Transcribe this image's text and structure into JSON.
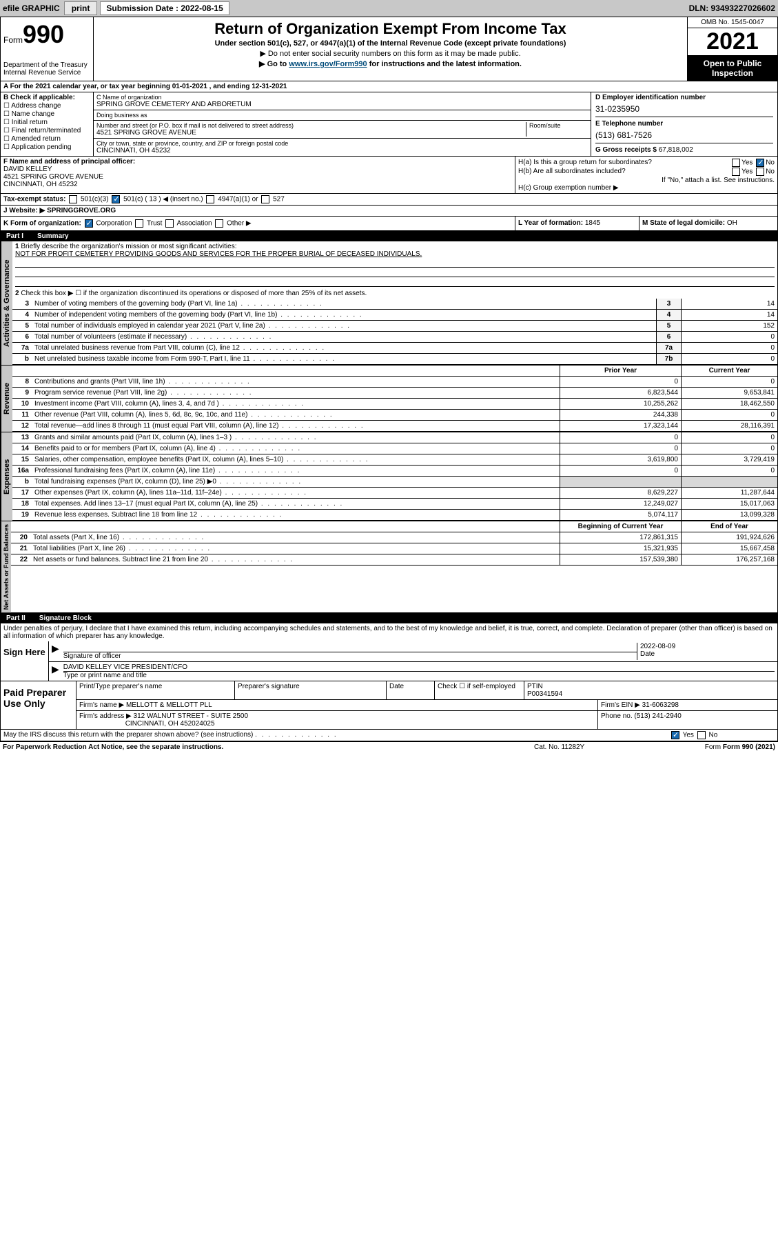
{
  "topbar": {
    "efile": "efile GRAPHIC",
    "print": "print",
    "sub_label": "Submission Date : 2022-08-15",
    "dln": "DLN: 93493227026602"
  },
  "header": {
    "form_label": "Form",
    "form_num": "990",
    "dept": "Department of the Treasury\nInternal Revenue Service",
    "title": "Return of Organization Exempt From Income Tax",
    "sub1": "Under section 501(c), 527, or 4947(a)(1) of the Internal Revenue Code (except private foundations)",
    "sub2": "▶ Do not enter social security numbers on this form as it may be made public.",
    "sub3_pre": "▶ Go to ",
    "sub3_link": "www.irs.gov/Form990",
    "sub3_post": " for instructions and the latest information.",
    "omb": "OMB No. 1545-0047",
    "year": "2021",
    "open_public": "Open to Public Inspection"
  },
  "row_a": "A For the 2021 calendar year, or tax year beginning 01-01-2021  , and ending 12-31-2021",
  "box_b": {
    "label": "B Check if applicable:",
    "items": [
      "Address change",
      "Name change",
      "Initial return",
      "Final return/terminated",
      "Amended return",
      "Application pending"
    ]
  },
  "box_c": {
    "name_label": "C Name of organization",
    "name": "SPRING GROVE CEMETERY AND ARBORETUM",
    "dba_label": "Doing business as",
    "dba": "",
    "addr_label": "Number and street (or P.O. box if mail is not delivered to street address)",
    "room_label": "Room/suite",
    "addr": "4521 SPRING GROVE AVENUE",
    "city_label": "City or town, state or province, country, and ZIP or foreign postal code",
    "city": "CINCINNATI, OH  45232"
  },
  "box_d": {
    "ein_label": "D Employer identification number",
    "ein": "31-0235950",
    "phone_label": "E Telephone number",
    "phone": "(513) 681-7526",
    "gross_label": "G Gross receipts $",
    "gross": "67,818,002"
  },
  "box_f": {
    "label": "F Name and address of principal officer:",
    "name": "DAVID KELLEY",
    "addr1": "4521 SPRING GROVE AVENUE",
    "addr2": "CINCINNATI, OH  45232"
  },
  "box_h": {
    "ha": "H(a)  Is this a group return for subordinates?",
    "hb": "H(b)  Are all subordinates included?",
    "hb_note": "If \"No,\" attach a list. See instructions.",
    "hc": "H(c)  Group exemption number ▶",
    "yes": "Yes",
    "no": "No"
  },
  "row_i": {
    "label": "Tax-exempt status:",
    "opts": [
      "501(c)(3)",
      "501(c) ( 13 ) ◀ (insert no.)",
      "4947(a)(1) or",
      "527"
    ]
  },
  "row_j": {
    "label": "J   Website: ▶",
    "val": "SPRINGGROVE.ORG"
  },
  "row_k": {
    "label": "K Form of organization:",
    "opts": [
      "Corporation",
      "Trust",
      "Association",
      "Other ▶"
    ],
    "l_label": "L Year of formation:",
    "l_val": "1845",
    "m_label": "M State of legal domicile:",
    "m_val": "OH"
  },
  "part1": {
    "hdr_num": "Part I",
    "hdr_title": "Summary",
    "q1": "Briefly describe the organization's mission or most significant activities:",
    "mission": "NOT FOR PROFIT CEMETERY PROVIDING GOODS AND SERVICES FOR THE PROPER BURIAL OF DECEASED INDIVIDUALS.",
    "q2": "Check this box ▶ ☐  if the organization discontinued its operations or disposed of more than 25% of its net assets.",
    "lines_gov": [
      {
        "n": "3",
        "t": "Number of voting members of the governing body (Part VI, line 1a)",
        "b": "3",
        "v": "14"
      },
      {
        "n": "4",
        "t": "Number of independent voting members of the governing body (Part VI, line 1b)",
        "b": "4",
        "v": "14"
      },
      {
        "n": "5",
        "t": "Total number of individuals employed in calendar year 2021 (Part V, line 2a)",
        "b": "5",
        "v": "152"
      },
      {
        "n": "6",
        "t": "Total number of volunteers (estimate if necessary)",
        "b": "6",
        "v": "0"
      },
      {
        "n": "7a",
        "t": "Total unrelated business revenue from Part VIII, column (C), line 12",
        "b": "7a",
        "v": "0"
      },
      {
        "n": "b",
        "t": "Net unrelated business taxable income from Form 990-T, Part I, line 11",
        "b": "7b",
        "v": "0"
      }
    ],
    "col_prior": "Prior Year",
    "col_current": "Current Year",
    "lines_rev": [
      {
        "n": "8",
        "t": "Contributions and grants (Part VIII, line 1h)",
        "p": "0",
        "c": "0"
      },
      {
        "n": "9",
        "t": "Program service revenue (Part VIII, line 2g)",
        "p": "6,823,544",
        "c": "9,653,841"
      },
      {
        "n": "10",
        "t": "Investment income (Part VIII, column (A), lines 3, 4, and 7d )",
        "p": "10,255,262",
        "c": "18,462,550"
      },
      {
        "n": "11",
        "t": "Other revenue (Part VIII, column (A), lines 5, 6d, 8c, 9c, 10c, and 11e)",
        "p": "244,338",
        "c": "0"
      },
      {
        "n": "12",
        "t": "Total revenue—add lines 8 through 11 (must equal Part VIII, column (A), line 12)",
        "p": "17,323,144",
        "c": "28,116,391"
      }
    ],
    "lines_exp": [
      {
        "n": "13",
        "t": "Grants and similar amounts paid (Part IX, column (A), lines 1–3 )",
        "p": "0",
        "c": "0"
      },
      {
        "n": "14",
        "t": "Benefits paid to or for members (Part IX, column (A), line 4)",
        "p": "0",
        "c": "0"
      },
      {
        "n": "15",
        "t": "Salaries, other compensation, employee benefits (Part IX, column (A), lines 5–10)",
        "p": "3,619,800",
        "c": "3,729,419"
      },
      {
        "n": "16a",
        "t": "Professional fundraising fees (Part IX, column (A), line 11e)",
        "p": "0",
        "c": "0"
      },
      {
        "n": "b",
        "t": "Total fundraising expenses (Part IX, column (D), line 25) ▶0",
        "p": "",
        "c": "",
        "shade": true
      },
      {
        "n": "17",
        "t": "Other expenses (Part IX, column (A), lines 11a–11d, 11f–24e)",
        "p": "8,629,227",
        "c": "11,287,644"
      },
      {
        "n": "18",
        "t": "Total expenses. Add lines 13–17 (must equal Part IX, column (A), line 25)",
        "p": "12,249,027",
        "c": "15,017,063"
      },
      {
        "n": "19",
        "t": "Revenue less expenses. Subtract line 18 from line 12",
        "p": "5,074,117",
        "c": "13,099,328"
      }
    ],
    "col_begin": "Beginning of Current Year",
    "col_end": "End of Year",
    "lines_net": [
      {
        "n": "20",
        "t": "Total assets (Part X, line 16)",
        "p": "172,861,315",
        "c": "191,924,626"
      },
      {
        "n": "21",
        "t": "Total liabilities (Part X, line 26)",
        "p": "15,321,935",
        "c": "15,667,458"
      },
      {
        "n": "22",
        "t": "Net assets or fund balances. Subtract line 21 from line 20",
        "p": "157,539,380",
        "c": "176,257,168"
      }
    ],
    "vlabels": {
      "gov": "Activities & Governance",
      "rev": "Revenue",
      "exp": "Expenses",
      "net": "Net Assets or Fund Balances"
    }
  },
  "part2": {
    "hdr_num": "Part II",
    "hdr_title": "Signature Block",
    "penalty": "Under penalties of perjury, I declare that I have examined this return, including accompanying schedules and statements, and to the best of my knowledge and belief, it is true, correct, and complete. Declaration of preparer (other than officer) is based on all information of which preparer has any knowledge.",
    "sign_here": "Sign Here",
    "sig_officer": "Signature of officer",
    "sig_date": "2022-08-09",
    "date_label": "Date",
    "officer_name": "DAVID KELLEY  VICE PRESIDENT/CFO",
    "officer_label": "Type or print name and title",
    "paid_label": "Paid Preparer Use Only",
    "prep_name_label": "Print/Type preparer's name",
    "prep_sig_label": "Preparer's signature",
    "prep_date_label": "Date",
    "check_self": "Check ☐ if self-employed",
    "ptin_label": "PTIN",
    "ptin": "P00341594",
    "firm_name_label": "Firm's name    ▶",
    "firm_name": "MELLOTT & MELLOTT PLL",
    "firm_ein_label": "Firm's EIN ▶",
    "firm_ein": "31-6063298",
    "firm_addr_label": "Firm's address ▶",
    "firm_addr": "312 WALNUT STREET - SUITE 2500",
    "firm_city": "CINCINNATI, OH  452024025",
    "firm_phone_label": "Phone no.",
    "firm_phone": "(513) 241-2940",
    "may_irs": "May the IRS discuss this return with the preparer shown above? (see instructions)",
    "yes": "Yes",
    "no": "No"
  },
  "footer": {
    "pra": "For Paperwork Reduction Act Notice, see the separate instructions.",
    "cat": "Cat. No. 11282Y",
    "form": "Form 990 (2021)"
  }
}
